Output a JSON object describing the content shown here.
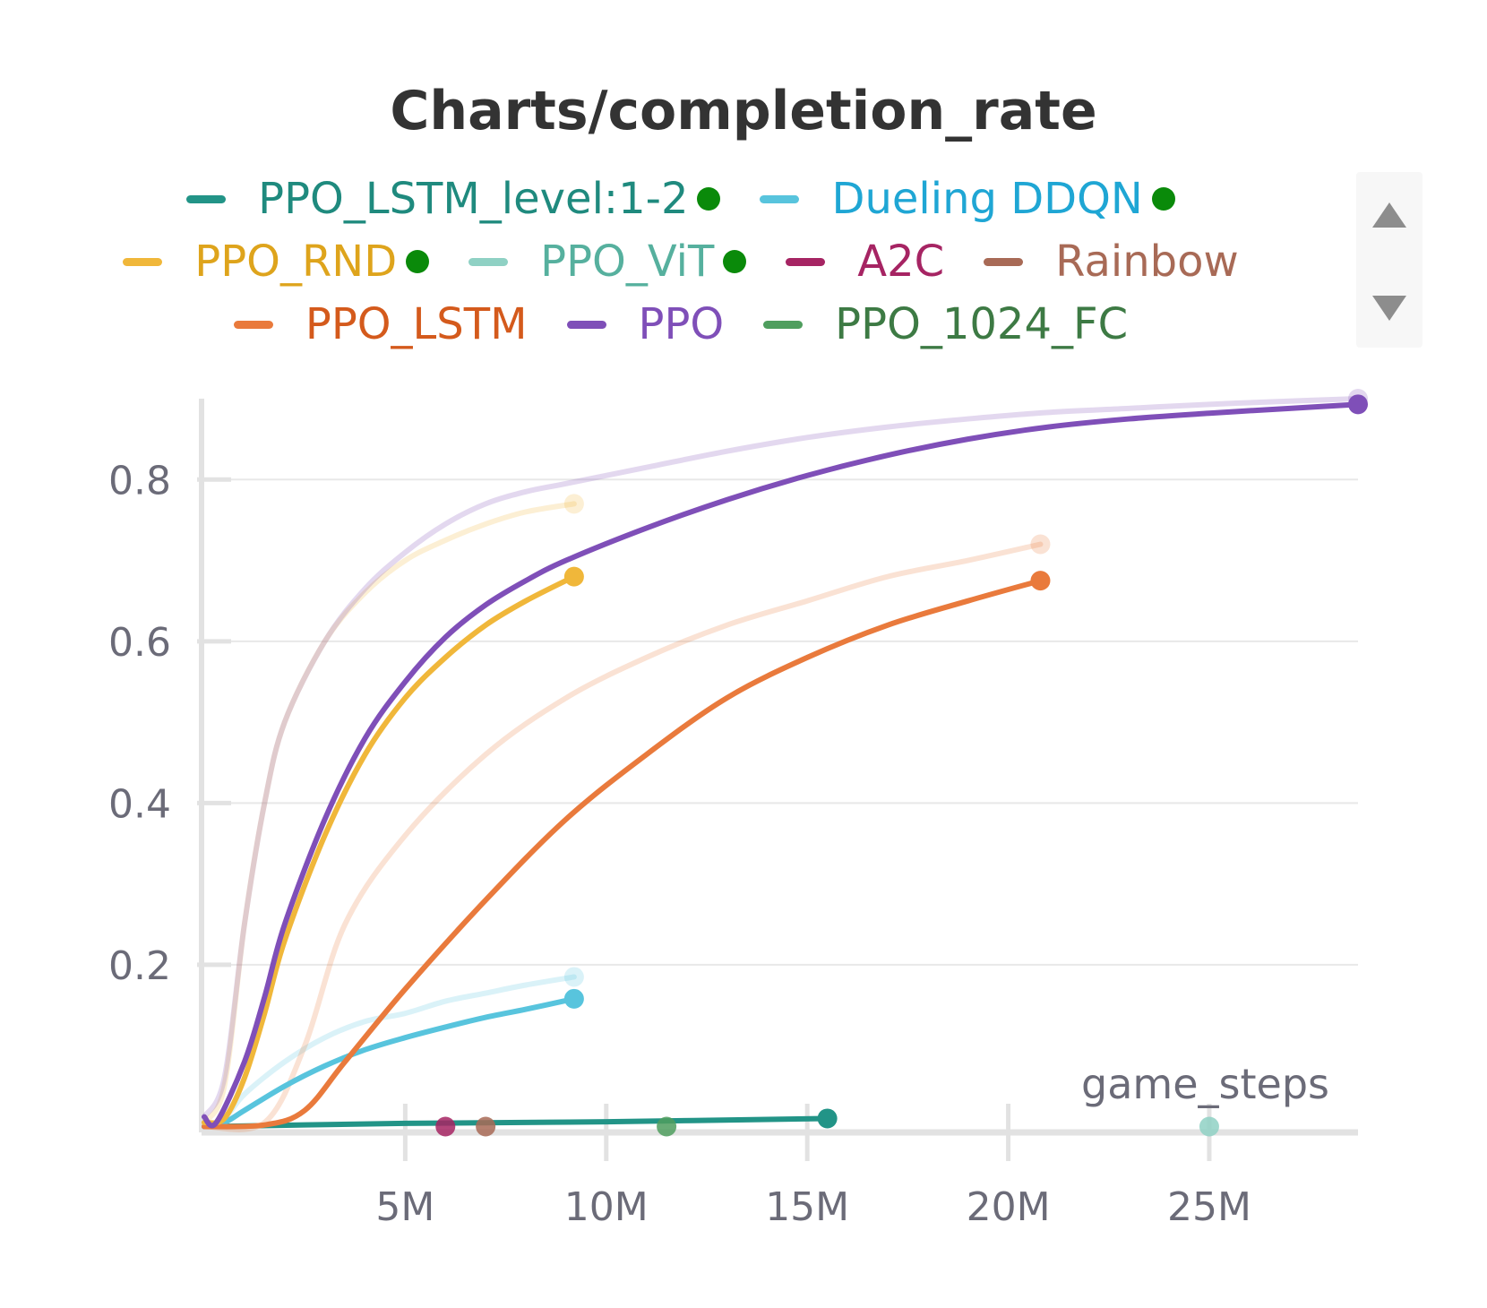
{
  "chart_data": {
    "type": "line",
    "title": "Charts/completion_rate",
    "xlabel": "game_steps",
    "ylabel": "",
    "xlim": [
      0,
      28700000
    ],
    "ylim": [
      -0.005,
      0.9
    ],
    "x_ticks": [
      {
        "value": 5000000,
        "label": "5M"
      },
      {
        "value": 10000000,
        "label": "10M"
      },
      {
        "value": 15000000,
        "label": "15M"
      },
      {
        "value": 20000000,
        "label": "20M"
      },
      {
        "value": 25000000,
        "label": "25M"
      }
    ],
    "y_ticks": [
      {
        "value": 0.2,
        "label": "0.2"
      },
      {
        "value": 0.4,
        "label": "0.4"
      },
      {
        "value": 0.6,
        "label": "0.6"
      },
      {
        "value": 0.8,
        "label": "0.8"
      }
    ],
    "grid": true,
    "legend_position": "top",
    "series": [
      {
        "name": "PPO_LSTM_level:1-2",
        "color": "#229487",
        "label_color": "#1f8a7e",
        "active": true,
        "legend_row": 0,
        "points": [
          [
            0,
            0
          ],
          [
            2500000,
            0.002
          ],
          [
            5000000,
            0.004
          ],
          [
            10000000,
            0.006
          ],
          [
            15500000,
            0.01
          ]
        ],
        "raw_points": []
      },
      {
        "name": "Dueling DDQN",
        "color": "#58c4dd",
        "label_color": "#1fa6d4",
        "active": true,
        "legend_row": 0,
        "points": [
          [
            0,
            0
          ],
          [
            500000,
            0.005
          ],
          [
            1000000,
            0.02
          ],
          [
            2000000,
            0.05
          ],
          [
            3000000,
            0.075
          ],
          [
            4000000,
            0.095
          ],
          [
            5000000,
            0.11
          ],
          [
            6000000,
            0.123
          ],
          [
            7000000,
            0.135
          ],
          [
            8000000,
            0.145
          ],
          [
            9200000,
            0.158
          ]
        ],
        "raw_points": [
          [
            0,
            0
          ],
          [
            500000,
            0.01
          ],
          [
            1000000,
            0.04
          ],
          [
            2000000,
            0.08
          ],
          [
            3000000,
            0.11
          ],
          [
            4000000,
            0.13
          ],
          [
            5000000,
            0.14
          ],
          [
            6000000,
            0.155
          ],
          [
            7000000,
            0.165
          ],
          [
            8000000,
            0.175
          ],
          [
            9200000,
            0.185
          ]
        ]
      },
      {
        "name": "PPO_RND",
        "color": "#f0b73a",
        "label_color": "#dea41c",
        "active": true,
        "legend_row": 1,
        "points": [
          [
            0,
            0.005
          ],
          [
            500000,
            0.01
          ],
          [
            1000000,
            0.06
          ],
          [
            1500000,
            0.14
          ],
          [
            2000000,
            0.23
          ],
          [
            3000000,
            0.36
          ],
          [
            4000000,
            0.46
          ],
          [
            5000000,
            0.53
          ],
          [
            6000000,
            0.58
          ],
          [
            7000000,
            0.62
          ],
          [
            8000000,
            0.65
          ],
          [
            9200000,
            0.68
          ]
        ],
        "raw_points": [
          [
            0,
            0.005
          ],
          [
            500000,
            0.05
          ],
          [
            1000000,
            0.25
          ],
          [
            1500000,
            0.4
          ],
          [
            2000000,
            0.5
          ],
          [
            3000000,
            0.6
          ],
          [
            4000000,
            0.66
          ],
          [
            5000000,
            0.7
          ],
          [
            6000000,
            0.725
          ],
          [
            7000000,
            0.745
          ],
          [
            8000000,
            0.76
          ],
          [
            9200000,
            0.77
          ]
        ]
      },
      {
        "name": "PPO_ViT",
        "color": "#8fd1c4",
        "label_color": "#56b09e",
        "active": true,
        "legend_row": 1,
        "points": [
          [
            25000000,
            0
          ]
        ],
        "raw_points": []
      },
      {
        "name": "A2C",
        "color": "#a62463",
        "label_color": "#a62463",
        "active": false,
        "legend_row": 1,
        "points": [
          [
            6000000,
            0
          ]
        ],
        "raw_points": []
      },
      {
        "name": "Rainbow",
        "color": "#a86a56",
        "label_color": "#a86a56",
        "active": false,
        "legend_row": 1,
        "points": [
          [
            7000000,
            0
          ]
        ],
        "raw_points": []
      },
      {
        "name": "PPO_LSTM",
        "color": "#e97a3c",
        "label_color": "#d45a1c",
        "active": false,
        "legend_row": 2,
        "points": [
          [
            0,
            0
          ],
          [
            1500000,
            0.002
          ],
          [
            2500000,
            0.02
          ],
          [
            3500000,
            0.08
          ],
          [
            5000000,
            0.17
          ],
          [
            7000000,
            0.28
          ],
          [
            9000000,
            0.38
          ],
          [
            11000000,
            0.46
          ],
          [
            13000000,
            0.53
          ],
          [
            15000000,
            0.58
          ],
          [
            17000000,
            0.62
          ],
          [
            19000000,
            0.65
          ],
          [
            20800000,
            0.675
          ]
        ],
        "raw_points": [
          [
            0,
            0
          ],
          [
            1500000,
            0.005
          ],
          [
            2500000,
            0.1
          ],
          [
            3500000,
            0.25
          ],
          [
            5000000,
            0.36
          ],
          [
            7000000,
            0.46
          ],
          [
            9000000,
            0.53
          ],
          [
            11000000,
            0.58
          ],
          [
            13000000,
            0.62
          ],
          [
            15000000,
            0.65
          ],
          [
            17000000,
            0.68
          ],
          [
            19000000,
            0.7
          ],
          [
            20800000,
            0.72
          ]
        ]
      },
      {
        "name": "PPO",
        "color": "#7f4fb8",
        "label_color": "#7f4fb8",
        "active": false,
        "legend_row": 2,
        "points": [
          [
            0,
            0.012
          ],
          [
            300000,
            0.005
          ],
          [
            1000000,
            0.08
          ],
          [
            1500000,
            0.16
          ],
          [
            2000000,
            0.25
          ],
          [
            3000000,
            0.38
          ],
          [
            4000000,
            0.48
          ],
          [
            5000000,
            0.55
          ],
          [
            6000000,
            0.605
          ],
          [
            7000000,
            0.645
          ],
          [
            8000000,
            0.675
          ],
          [
            9000000,
            0.7
          ],
          [
            11000000,
            0.74
          ],
          [
            13000000,
            0.775
          ],
          [
            15000000,
            0.805
          ],
          [
            17000000,
            0.83
          ],
          [
            19000000,
            0.85
          ],
          [
            21000000,
            0.865
          ],
          [
            23000000,
            0.875
          ],
          [
            25000000,
            0.882
          ],
          [
            27000000,
            0.888
          ],
          [
            28700000,
            0.893
          ]
        ],
        "raw_points": [
          [
            0,
            0.012
          ],
          [
            500000,
            0.06
          ],
          [
            1000000,
            0.25
          ],
          [
            1500000,
            0.4
          ],
          [
            2000000,
            0.5
          ],
          [
            3000000,
            0.6
          ],
          [
            4000000,
            0.665
          ],
          [
            5000000,
            0.71
          ],
          [
            6000000,
            0.745
          ],
          [
            7000000,
            0.77
          ],
          [
            8000000,
            0.785
          ],
          [
            9000000,
            0.795
          ],
          [
            11000000,
            0.815
          ],
          [
            13000000,
            0.835
          ],
          [
            15000000,
            0.852
          ],
          [
            17000000,
            0.865
          ],
          [
            19000000,
            0.875
          ],
          [
            21000000,
            0.883
          ],
          [
            23000000,
            0.888
          ],
          [
            25000000,
            0.893
          ],
          [
            27000000,
            0.897
          ],
          [
            28700000,
            0.9
          ]
        ]
      },
      {
        "name": "PPO_1024_FC",
        "color": "#4f9e5e",
        "label_color": "#3d7a44",
        "active": false,
        "legend_row": 2,
        "points": [
          [
            11500000,
            0
          ]
        ],
        "raw_points": []
      }
    ]
  }
}
